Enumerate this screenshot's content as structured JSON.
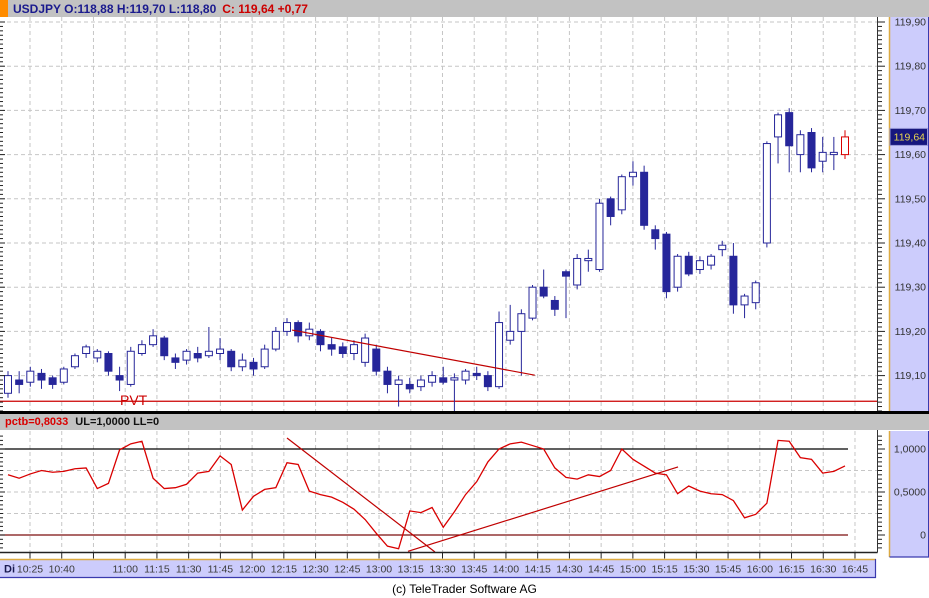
{
  "topbar": {
    "symbol_quote": "USDJPY O:118,88 H:119,70 L:118,80",
    "close_quote": "C: 119,64 +0,77"
  },
  "indicator_header": {
    "left": "pctb=0,8033",
    "right": "UL=1,0000 LL=0"
  },
  "footer": {
    "copyright": "(c) TeleTrader Software AG"
  },
  "price_axis": {
    "labels": [
      {
        "text": "119,90",
        "price": 119.9
      },
      {
        "text": "119,80",
        "price": 119.8
      },
      {
        "text": "119,70",
        "price": 119.7
      },
      {
        "text": "119,60",
        "price": 119.6
      },
      {
        "text": "119,50",
        "price": 119.5
      },
      {
        "text": "119,40",
        "price": 119.4
      },
      {
        "text": "119,30",
        "price": 119.3
      },
      {
        "text": "119,20",
        "price": 119.2
      },
      {
        "text": "119,10",
        "price": 119.1
      }
    ],
    "marker": {
      "text": "119,64",
      "price": 119.64
    }
  },
  "indicator_axis": {
    "labels": [
      {
        "text": "1,0000",
        "value": 1.0
      },
      {
        "text": "0,5000",
        "value": 0.5
      },
      {
        "text": "0",
        "value": 0.0
      }
    ]
  },
  "time_axis": {
    "day_label": "Di",
    "labels": [
      "10:25",
      "10:40",
      "",
      "11:00",
      "11:15",
      "11:30",
      "11:45",
      "12:00",
      "12:15",
      "12:30",
      "12:45",
      "13:00",
      "13:15",
      "13:30",
      "13:45",
      "14:00",
      "14:15",
      "14:30",
      "14:45",
      "15:00",
      "15:15",
      "15:30",
      "15:45",
      "16:00",
      "16:15",
      "16:30",
      "16:45"
    ]
  },
  "annotations": {
    "pvt_label": "PVT",
    "pvt_price": 119.042,
    "main_trendline": {
      "from_bar": 25.45,
      "from_price": 119.203,
      "to_bar": 47.2,
      "to_price": 119.101
    },
    "indicator_trendlines": [
      {
        "from_bar": 25.0,
        "from_value": 1.128,
        "to_bar": 38.26,
        "to_value": -0.198
      },
      {
        "from_bar": 35.84,
        "from_value": -0.19,
        "to_bar": 60.04,
        "to_value": 0.791
      }
    ]
  },
  "colors": {
    "candle": "#26269a",
    "candle_up_fill": "#ffffff",
    "current_bar": "#d90000",
    "indicator_line": "#d90000",
    "trendline": "#c00000",
    "grid": "#c6c6c6",
    "axis_bg": "#ccccfc",
    "axis_border": "#dcaa41",
    "band_border": "#3a3aae",
    "marker_bg": "#16167e",
    "marker_fg": "#e6d44e",
    "ul_line": "#000000",
    "ll_line": "#7c0f0f",
    "pvt": "#cc0000",
    "tick": "#222222",
    "label": "#333333",
    "day_label": "#1a1a50"
  },
  "chart_data": {
    "type": "candlestick",
    "title": "USDJPY intraday 5-minute candles with pctb (%B) indicator pane",
    "main_ylim": [
      119.015,
      119.911
    ],
    "indicator_ylim": [
      -0.21,
      1.21
    ],
    "indicator": {
      "name": "pctb",
      "last_value": 0.8033,
      "ul": 1.0,
      "ll": 0.0
    },
    "ohlc": [
      [
        119.06,
        119.11,
        119.05,
        119.1
      ],
      [
        119.09,
        119.11,
        119.06,
        119.08
      ],
      [
        119.085,
        119.12,
        119.075,
        119.11
      ],
      [
        119.105,
        119.115,
        119.07,
        119.09
      ],
      [
        119.095,
        119.1,
        119.07,
        119.08
      ],
      [
        119.085,
        119.12,
        119.08,
        119.115
      ],
      [
        119.12,
        119.15,
        119.115,
        119.145
      ],
      [
        119.15,
        119.17,
        119.14,
        119.165
      ],
      [
        119.14,
        119.16,
        119.13,
        119.155
      ],
      [
        119.15,
        119.155,
        119.1,
        119.11
      ],
      [
        119.1,
        119.12,
        119.065,
        119.09
      ],
      [
        119.08,
        119.165,
        119.075,
        119.155
      ],
      [
        119.15,
        119.18,
        119.145,
        119.17
      ],
      [
        119.17,
        119.205,
        119.165,
        119.19
      ],
      [
        119.185,
        119.19,
        119.135,
        119.145
      ],
      [
        119.14,
        119.15,
        119.115,
        119.13
      ],
      [
        119.135,
        119.16,
        119.125,
        119.155
      ],
      [
        119.15,
        119.165,
        119.13,
        119.14
      ],
      [
        119.145,
        119.21,
        119.14,
        119.155
      ],
      [
        119.15,
        119.185,
        119.135,
        119.16
      ],
      [
        119.155,
        119.16,
        119.11,
        119.12
      ],
      [
        119.12,
        119.15,
        119.11,
        119.135
      ],
      [
        119.13,
        119.14,
        119.1,
        119.115
      ],
      [
        119.12,
        119.17,
        119.115,
        119.16
      ],
      [
        119.16,
        119.21,
        119.155,
        119.2
      ],
      [
        119.2,
        119.23,
        119.19,
        119.22
      ],
      [
        119.22,
        119.225,
        119.175,
        119.19
      ],
      [
        119.19,
        119.22,
        119.18,
        119.205
      ],
      [
        119.2,
        119.205,
        119.155,
        119.17
      ],
      [
        119.17,
        119.185,
        119.145,
        119.16
      ],
      [
        119.165,
        119.175,
        119.14,
        119.15
      ],
      [
        119.15,
        119.18,
        119.135,
        119.17
      ],
      [
        119.13,
        119.195,
        119.12,
        119.185
      ],
      [
        119.16,
        119.17,
        119.1,
        119.11
      ],
      [
        119.11,
        119.12,
        119.06,
        119.08
      ],
      [
        119.08,
        119.1,
        119.03,
        119.09
      ],
      [
        119.08,
        119.095,
        119.06,
        119.07
      ],
      [
        119.075,
        119.1,
        119.065,
        119.09
      ],
      [
        119.085,
        119.11,
        119.075,
        119.1
      ],
      [
        119.095,
        119.12,
        119.08,
        119.085
      ],
      [
        119.09,
        119.105,
        119.02,
        119.095
      ],
      [
        119.09,
        119.115,
        119.08,
        119.11
      ],
      [
        119.105,
        119.12,
        119.09,
        119.1
      ],
      [
        119.1,
        119.11,
        119.065,
        119.075
      ],
      [
        119.075,
        119.245,
        119.07,
        119.22
      ],
      [
        119.18,
        119.26,
        119.17,
        119.2
      ],
      [
        119.2,
        119.25,
        119.1,
        119.24
      ],
      [
        119.23,
        119.305,
        119.225,
        119.3
      ],
      [
        119.3,
        119.34,
        119.275,
        119.28
      ],
      [
        119.27,
        119.28,
        119.235,
        119.25
      ],
      [
        119.335,
        119.34,
        119.23,
        119.325
      ],
      [
        119.305,
        119.375,
        119.295,
        119.365
      ],
      [
        119.36,
        119.385,
        119.335,
        119.365
      ],
      [
        119.34,
        119.5,
        119.335,
        119.49
      ],
      [
        119.5,
        119.505,
        119.44,
        119.46
      ],
      [
        119.475,
        119.555,
        119.465,
        119.55
      ],
      [
        119.55,
        119.585,
        119.53,
        119.56
      ],
      [
        119.56,
        119.575,
        119.43,
        119.44
      ],
      [
        119.43,
        119.44,
        119.385,
        119.41
      ],
      [
        119.42,
        119.425,
        119.275,
        119.29
      ],
      [
        119.3,
        119.375,
        119.29,
        119.37
      ],
      [
        119.37,
        119.38,
        119.325,
        119.33
      ],
      [
        119.34,
        119.37,
        119.33,
        119.36
      ],
      [
        119.35,
        119.375,
        119.34,
        119.37
      ],
      [
        119.385,
        119.405,
        119.37,
        119.395
      ],
      [
        119.37,
        119.4,
        119.24,
        119.26
      ],
      [
        119.26,
        119.285,
        119.23,
        119.28
      ],
      [
        119.265,
        119.315,
        119.25,
        119.31
      ],
      [
        119.4,
        119.63,
        119.39,
        119.625
      ],
      [
        119.64,
        119.695,
        119.58,
        119.69
      ],
      [
        119.695,
        119.705,
        119.56,
        119.62
      ],
      [
        119.6,
        119.655,
        119.56,
        119.645
      ],
      [
        119.65,
        119.66,
        119.56,
        119.57
      ],
      [
        119.585,
        119.64,
        119.56,
        119.605
      ],
      [
        119.6,
        119.64,
        119.565,
        119.605
      ],
      [
        119.6,
        119.655,
        119.59,
        119.64
      ]
    ],
    "pctb_values": [
      0.7,
      0.66,
      0.71,
      0.75,
      0.73,
      0.74,
      0.77,
      0.78,
      0.54,
      0.6,
      0.99,
      1.06,
      1.09,
      0.66,
      0.54,
      0.55,
      0.59,
      0.72,
      0.74,
      0.92,
      0.82,
      0.29,
      0.45,
      0.53,
      0.55,
      0.84,
      0.82,
      0.51,
      0.47,
      0.44,
      0.38,
      0.3,
      0.18,
      0.02,
      -0.13,
      -0.16,
      0.28,
      0.26,
      0.32,
      0.09,
      0.27,
      0.47,
      0.62,
      0.85,
      1.0,
      1.06,
      1.08,
      1.04,
      1.0,
      0.78,
      0.67,
      0.65,
      0.7,
      0.68,
      0.75,
      1.0,
      0.88,
      0.8,
      0.72,
      0.7,
      0.48,
      0.57,
      0.51,
      0.48,
      0.47,
      0.4,
      0.2,
      0.24,
      0.37,
      1.1,
      1.09,
      0.9,
      0.88,
      0.72,
      0.74,
      0.8033
    ]
  }
}
